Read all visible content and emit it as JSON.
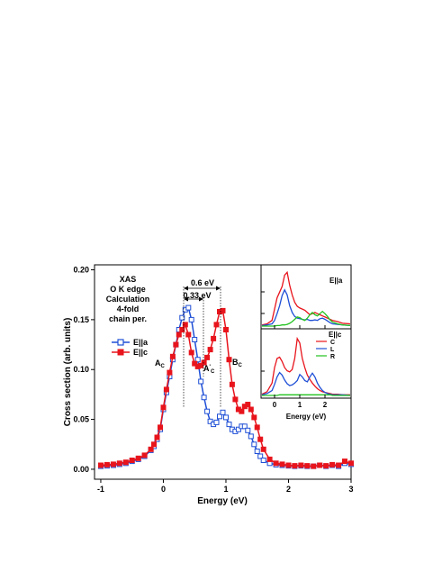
{
  "chart_data": [
    {
      "type": "line",
      "title": "",
      "xlabel": "Energy (eV)",
      "ylabel": "Cross section (arb. units)",
      "xlim": [
        -1.1,
        3.0
      ],
      "ylim": [
        -0.01,
        0.205
      ],
      "xticks": [
        -1,
        0,
        1,
        2,
        3
      ],
      "xtick_labels": [
        "-1",
        "0",
        "1",
        "2",
        "3"
      ],
      "yticks": [
        0.0,
        0.05,
        0.1,
        0.15,
        0.2
      ],
      "ytick_labels": [
        "0.00",
        "0.05",
        "0.10",
        "0.15",
        "0.20"
      ],
      "grid": false,
      "legend_position": "left",
      "annotation_lines": [
        "XAS",
        "O K edge",
        "Calculation",
        "4-fold",
        "chain per."
      ],
      "annotations": {
        "dE_large": "0.6 eV",
        "dE_small": "0.33 eV",
        "peak_Ac": "A",
        "peak_Ac_sub": "C",
        "peak_Acp": "A",
        "peak_Acp_sub": "C",
        "peak_Acp_sup": "'",
        "peak_Bc": "B",
        "peak_Bc_sub": "C"
      },
      "series": [
        {
          "name": "E||a",
          "color": "#1f4fd6",
          "marker": "open-square",
          "x": [
            -1.0,
            -0.9,
            -0.8,
            -0.7,
            -0.6,
            -0.5,
            -0.4,
            -0.3,
            -0.2,
            -0.15,
            -0.1,
            -0.05,
            0.0,
            0.05,
            0.1,
            0.15,
            0.2,
            0.25,
            0.3,
            0.35,
            0.4,
            0.45,
            0.5,
            0.55,
            0.6,
            0.65,
            0.7,
            0.75,
            0.8,
            0.85,
            0.9,
            0.95,
            1.0,
            1.05,
            1.1,
            1.15,
            1.2,
            1.25,
            1.3,
            1.35,
            1.4,
            1.45,
            1.5,
            1.55,
            1.6,
            1.7,
            1.8,
            1.9,
            2.0,
            2.1,
            2.2,
            2.3,
            2.4,
            2.5,
            2.6,
            2.7,
            2.8,
            2.9,
            3.0
          ],
          "y": [
            0.003,
            0.0035,
            0.004,
            0.005,
            0.006,
            0.008,
            0.01,
            0.013,
            0.019,
            0.023,
            0.03,
            0.04,
            0.06,
            0.077,
            0.093,
            0.11,
            0.125,
            0.14,
            0.152,
            0.16,
            0.162,
            0.15,
            0.13,
            0.11,
            0.088,
            0.072,
            0.058,
            0.048,
            0.045,
            0.047,
            0.053,
            0.057,
            0.052,
            0.045,
            0.04,
            0.038,
            0.04,
            0.043,
            0.043,
            0.039,
            0.033,
            0.025,
            0.018,
            0.013,
            0.009,
            0.006,
            0.0045,
            0.004,
            0.0035,
            0.003,
            0.0035,
            0.003,
            0.003,
            0.004,
            0.003,
            0.004,
            0.003,
            0.006,
            0.005
          ]
        },
        {
          "name": "E||c",
          "color": "#e8141c",
          "marker": "filled-square",
          "x": [
            -1.0,
            -0.9,
            -0.8,
            -0.7,
            -0.6,
            -0.5,
            -0.4,
            -0.3,
            -0.2,
            -0.15,
            -0.1,
            -0.05,
            0.0,
            0.05,
            0.1,
            0.15,
            0.2,
            0.25,
            0.3,
            0.35,
            0.4,
            0.45,
            0.5,
            0.55,
            0.6,
            0.65,
            0.7,
            0.75,
            0.8,
            0.85,
            0.9,
            0.95,
            1.0,
            1.05,
            1.1,
            1.15,
            1.2,
            1.25,
            1.3,
            1.35,
            1.4,
            1.45,
            1.5,
            1.55,
            1.6,
            1.7,
            1.8,
            1.9,
            2.0,
            2.1,
            2.2,
            2.3,
            2.4,
            2.5,
            2.6,
            2.7,
            2.8,
            2.9,
            3.0
          ],
          "y": [
            0.004,
            0.0045,
            0.005,
            0.006,
            0.007,
            0.009,
            0.011,
            0.014,
            0.02,
            0.025,
            0.032,
            0.042,
            0.062,
            0.08,
            0.097,
            0.113,
            0.125,
            0.135,
            0.14,
            0.145,
            0.135,
            0.117,
            0.106,
            0.103,
            0.104,
            0.107,
            0.112,
            0.12,
            0.131,
            0.145,
            0.158,
            0.159,
            0.14,
            0.11,
            0.085,
            0.07,
            0.06,
            0.058,
            0.063,
            0.065,
            0.06,
            0.052,
            0.042,
            0.03,
            0.02,
            0.01,
            0.006,
            0.005,
            0.004,
            0.0035,
            0.004,
            0.0035,
            0.003,
            0.004,
            0.0035,
            0.0045,
            0.004,
            0.008,
            0.006
          ]
        }
      ]
    },
    {
      "type": "line",
      "panel": "inset-top",
      "label": "E||a",
      "xlim": [
        -0.5,
        3.0
      ],
      "series": [
        {
          "name": "C",
          "color": "#e8141c",
          "x": [
            -0.5,
            -0.3,
            -0.1,
            0.0,
            0.1,
            0.2,
            0.3,
            0.4,
            0.5,
            0.6,
            0.7,
            0.8,
            0.9,
            1.0,
            1.1,
            1.2,
            1.3,
            1.4,
            1.5,
            1.6,
            1.7,
            1.8,
            1.9,
            2.0,
            2.1,
            2.2,
            2.3,
            2.5,
            2.7,
            3.0
          ],
          "y": [
            0.02,
            0.04,
            0.1,
            0.3,
            0.5,
            0.6,
            0.7,
            0.9,
            0.95,
            0.72,
            0.55,
            0.42,
            0.35,
            0.32,
            0.3,
            0.28,
            0.24,
            0.2,
            0.22,
            0.24,
            0.22,
            0.2,
            0.18,
            0.16,
            0.14,
            0.12,
            0.1,
            0.08,
            0.05,
            0.04
          ]
        },
        {
          "name": "L",
          "color": "#1f4fd6",
          "x": [
            -0.5,
            -0.3,
            -0.1,
            0.0,
            0.1,
            0.2,
            0.3,
            0.4,
            0.5,
            0.6,
            0.7,
            0.8,
            0.9,
            1.0,
            1.1,
            1.2,
            1.3,
            1.4,
            1.5,
            1.6,
            1.7,
            1.8,
            1.9,
            2.0,
            2.1,
            2.2,
            2.3,
            2.5,
            2.7,
            3.0
          ],
          "y": [
            0.01,
            0.02,
            0.04,
            0.1,
            0.22,
            0.36,
            0.54,
            0.64,
            0.55,
            0.36,
            0.24,
            0.17,
            0.14,
            0.13,
            0.12,
            0.11,
            0.12,
            0.1,
            0.1,
            0.11,
            0.1,
            0.13,
            0.14,
            0.12,
            0.09,
            0.06,
            0.04,
            0.03,
            0.02,
            0.01
          ]
        },
        {
          "name": "R",
          "color": "#22c21f",
          "x": [
            -0.5,
            -0.3,
            -0.1,
            0.0,
            0.1,
            0.2,
            0.3,
            0.4,
            0.5,
            0.6,
            0.7,
            0.8,
            0.9,
            1.0,
            1.1,
            1.2,
            1.3,
            1.4,
            1.5,
            1.6,
            1.7,
            1.8,
            1.9,
            2.0,
            2.1,
            2.2,
            2.3,
            2.5,
            2.7,
            3.0
          ],
          "y": [
            0.0,
            0.0,
            0.0,
            0.0,
            0.01,
            0.01,
            0.02,
            0.02,
            0.03,
            0.05,
            0.08,
            0.12,
            0.16,
            0.15,
            0.12,
            0.1,
            0.14,
            0.2,
            0.24,
            0.2,
            0.18,
            0.22,
            0.26,
            0.22,
            0.17,
            0.11,
            0.07,
            0.04,
            0.02,
            0.01
          ]
        }
      ]
    },
    {
      "type": "line",
      "panel": "inset-bottom",
      "label": "E||c",
      "xlabel": "Energy (eV)",
      "xlim": [
        -0.5,
        3.0
      ],
      "xticks": [
        0,
        1,
        2
      ],
      "xtick_labels": [
        "0",
        "1",
        "2"
      ],
      "legend_position": "right",
      "series": [
        {
          "name": "C",
          "color": "#e8141c",
          "x": [
            -0.5,
            -0.3,
            -0.1,
            0.0,
            0.1,
            0.2,
            0.3,
            0.4,
            0.5,
            0.6,
            0.7,
            0.8,
            0.9,
            1.0,
            1.1,
            1.2,
            1.3,
            1.4,
            1.5,
            1.6,
            1.7,
            1.8,
            1.9,
            2.0,
            2.1,
            2.2,
            2.3,
            2.5,
            2.7,
            3.0
          ],
          "y": [
            0.02,
            0.06,
            0.2,
            0.45,
            0.6,
            0.62,
            0.55,
            0.45,
            0.4,
            0.38,
            0.42,
            0.6,
            0.92,
            0.85,
            0.6,
            0.45,
            0.33,
            0.26,
            0.2,
            0.15,
            0.11,
            0.08,
            0.06,
            0.05,
            0.04,
            0.03,
            0.02,
            0.02,
            0.01,
            0.01
          ]
        },
        {
          "name": "L",
          "color": "#1f4fd6",
          "x": [
            -0.5,
            -0.3,
            -0.1,
            0.0,
            0.1,
            0.2,
            0.3,
            0.4,
            0.5,
            0.6,
            0.7,
            0.8,
            0.9,
            1.0,
            1.1,
            1.2,
            1.3,
            1.4,
            1.5,
            1.6,
            1.7,
            1.8,
            1.9,
            2.0,
            2.1,
            2.2,
            2.3,
            2.5,
            2.7,
            3.0
          ],
          "y": [
            0.01,
            0.03,
            0.08,
            0.18,
            0.3,
            0.37,
            0.33,
            0.25,
            0.19,
            0.16,
            0.17,
            0.2,
            0.24,
            0.34,
            0.3,
            0.24,
            0.22,
            0.3,
            0.36,
            0.3,
            0.2,
            0.13,
            0.08,
            0.05,
            0.03,
            0.02,
            0.01,
            0.01,
            0.01,
            0.0
          ]
        },
        {
          "name": "R",
          "color": "#22c21f",
          "x": [
            -0.5,
            -0.3,
            -0.1,
            0.0,
            0.1,
            0.2,
            0.3,
            0.4,
            0.5,
            0.6,
            0.7,
            0.8,
            0.9,
            1.0,
            1.1,
            1.2,
            1.3,
            1.4,
            1.5,
            1.6,
            1.7,
            1.8,
            1.9,
            2.0,
            2.1,
            2.2,
            2.3,
            2.5,
            2.7,
            3.0
          ],
          "y": [
            0.0,
            0.0,
            0.0,
            0.0,
            0.0,
            0.01,
            0.01,
            0.01,
            0.01,
            0.01,
            0.01,
            0.01,
            0.01,
            0.01,
            0.01,
            0.01,
            0.01,
            0.01,
            0.01,
            0.01,
            0.01,
            0.01,
            0.01,
            0.01,
            0.01,
            0.01,
            0.0,
            0.0,
            0.0,
            0.0
          ]
        }
      ]
    }
  ]
}
